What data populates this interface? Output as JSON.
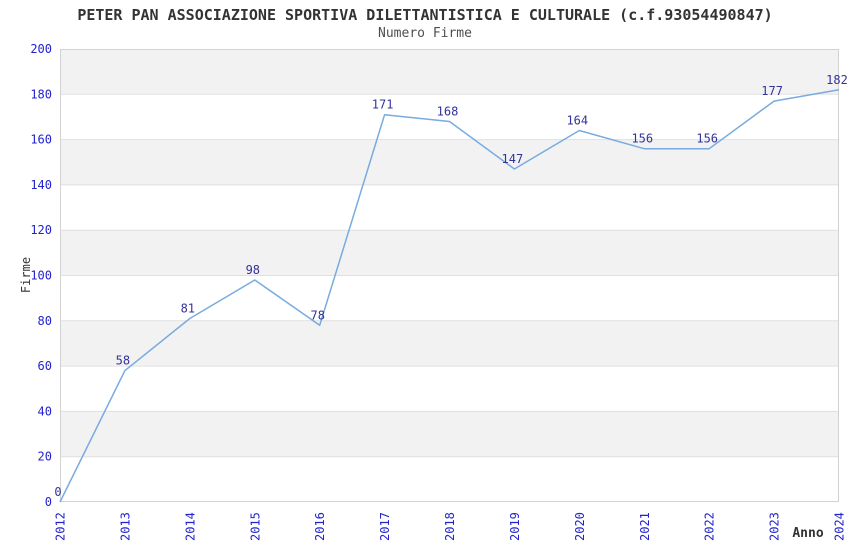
{
  "header": {
    "title": "PETER PAN ASSOCIAZIONE SPORTIVA DILETTANTISTICA E CULTURALE (c.f.93054490847)",
    "subtitle": "Numero Firme"
  },
  "chart_data": {
    "type": "line",
    "title": "PETER PAN ASSOCIAZIONE SPORTIVA DILETTANTISTICA E CULTURALE (c.f.93054490847)",
    "subtitle": "Numero Firme",
    "xlabel": "Anno",
    "ylabel": "Firme",
    "categories": [
      "2012",
      "2013",
      "2014",
      "2015",
      "2016",
      "2017",
      "2018",
      "2019",
      "2020",
      "2021",
      "2022",
      "2023",
      "2024"
    ],
    "values": [
      0,
      58,
      81,
      98,
      78,
      171,
      168,
      147,
      164,
      156,
      156,
      177,
      182
    ],
    "ylim": [
      0,
      200
    ],
    "ytick_step": 20,
    "yticks": [
      0,
      20,
      40,
      60,
      80,
      100,
      120,
      140,
      160,
      180,
      200
    ],
    "grid": "horizontal-lines-with-alternating-bands",
    "legend": "none",
    "data_labels": "shown above each point",
    "colors": {
      "line": "#78abdf",
      "tick_label": "#2323cd",
      "data_label": "#333399",
      "band_fill": "#f2f2f2",
      "grid_line": "#e0e0e0",
      "plot_border": "#d2d2d2",
      "title_text": "#333333",
      "subtitle_text": "#4f4f4f",
      "axis_label_text": "#333333",
      "background": "#ffffff"
    }
  }
}
